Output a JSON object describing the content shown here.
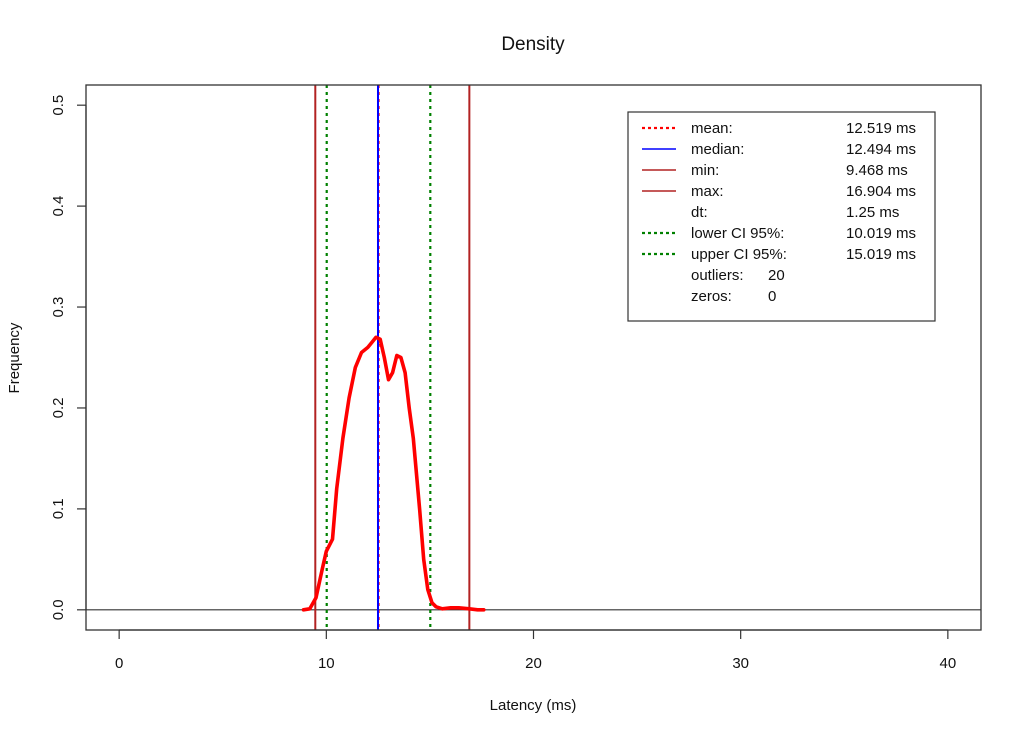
{
  "chart_data": {
    "type": "line",
    "title": "Density",
    "xlabel": "Latency (ms)",
    "ylabel": "Frequency",
    "xlim": [
      -1.6,
      41.6
    ],
    "ylim": [
      -0.02,
      0.52
    ],
    "xticks": [
      0,
      10,
      20,
      30,
      40
    ],
    "yticks": [
      0.0,
      0.1,
      0.2,
      0.3,
      0.4,
      0.5
    ],
    "xtick_labels": [
      "0",
      "10",
      "20",
      "30",
      "40"
    ],
    "ytick_labels": [
      "0.0",
      "0.1",
      "0.2",
      "0.3",
      "0.4",
      "0.5"
    ],
    "grid": false,
    "legend_position": "top-right",
    "series": [
      {
        "color": "#ff0000",
        "x": [
          8.9,
          9.2,
          9.5,
          9.8,
          10.0,
          10.3,
          10.5,
          10.8,
          11.1,
          11.4,
          11.7,
          12.0,
          12.2,
          12.4,
          12.6,
          12.8,
          13.0,
          13.2,
          13.4,
          13.6,
          13.8,
          14.0,
          14.2,
          14.5,
          14.7,
          14.9,
          15.1,
          15.3,
          15.6,
          16.0,
          16.4,
          16.9,
          17.3,
          17.6
        ],
        "y": [
          0.0,
          0.001,
          0.012,
          0.04,
          0.058,
          0.07,
          0.12,
          0.17,
          0.21,
          0.24,
          0.255,
          0.26,
          0.265,
          0.27,
          0.268,
          0.25,
          0.228,
          0.235,
          0.252,
          0.25,
          0.235,
          0.2,
          0.17,
          0.1,
          0.05,
          0.02,
          0.007,
          0.003,
          0.001,
          0.002,
          0.002,
          0.001,
          0.0,
          0.0
        ]
      }
    ],
    "baseline_y": 0.0,
    "vlines": [
      {
        "key": "mean",
        "x": 12.519,
        "color": "#ff0000",
        "style": "dotted"
      },
      {
        "key": "median",
        "x": 12.494,
        "color": "#0000ff",
        "style": "solid"
      },
      {
        "key": "min",
        "x": 9.468,
        "color": "#b22222",
        "style": "solid"
      },
      {
        "key": "max",
        "x": 16.904,
        "color": "#b22222",
        "style": "solid"
      },
      {
        "key": "lower_ci",
        "x": 10.019,
        "color": "#008000",
        "style": "dotted"
      },
      {
        "key": "upper_ci",
        "x": 15.019,
        "color": "#008000",
        "style": "dotted"
      }
    ],
    "legend": [
      {
        "key": "mean",
        "label": "mean:",
        "value": "12.519 ms",
        "color": "#ff0000",
        "style": "dotted"
      },
      {
        "key": "median",
        "label": "median:",
        "value": "12.494 ms",
        "color": "#0000ff",
        "style": "solid"
      },
      {
        "key": "min",
        "label": "min:",
        "value": "9.468 ms",
        "color": "#b22222",
        "style": "solid"
      },
      {
        "key": "max",
        "label": "max:",
        "value": "16.904 ms",
        "color": "#b22222",
        "style": "solid"
      },
      {
        "key": "dt",
        "label": "dt:",
        "value": "1.25 ms",
        "color": "",
        "style": "none"
      },
      {
        "key": "lower_ci",
        "label": "lower CI 95%:",
        "value": "10.019 ms",
        "color": "#008000",
        "style": "dotted"
      },
      {
        "key": "upper_ci",
        "label": "upper CI 95%:",
        "value": "15.019 ms",
        "color": "#008000",
        "style": "dotted"
      },
      {
        "key": "outliers",
        "label": "outliers:",
        "value": "20",
        "color": "",
        "style": "none"
      },
      {
        "key": "zeros",
        "label": "zeros:",
        "value": "0",
        "color": "",
        "style": "none"
      }
    ]
  }
}
